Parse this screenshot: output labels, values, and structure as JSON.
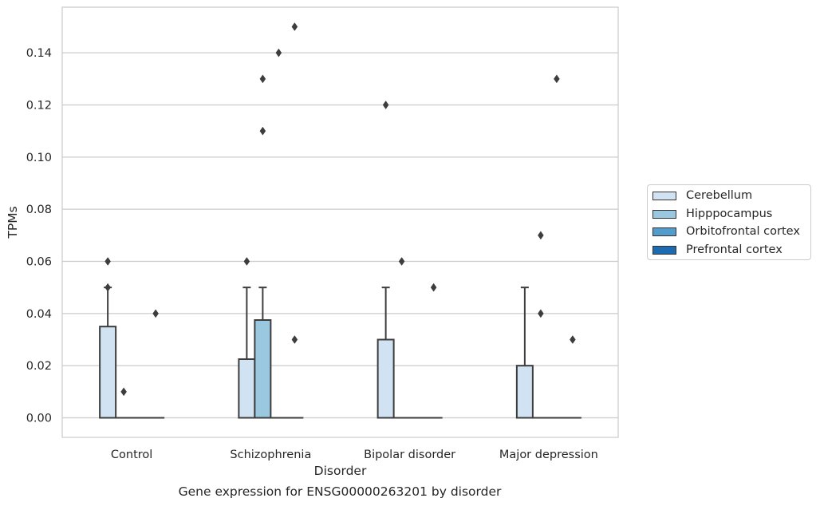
{
  "chart_data": {
    "type": "box",
    "xlabel": "Disorder",
    "ylabel": "TPMs",
    "ylim": [
      -0.0075,
      0.1575
    ],
    "yticks": [
      0.0,
      0.02,
      0.04,
      0.06,
      0.08,
      0.1,
      0.12,
      0.14
    ],
    "ytick_labels": [
      "0.00",
      "0.02",
      "0.04",
      "0.06",
      "0.08",
      "0.10",
      "0.12",
      "0.14"
    ],
    "grid": true,
    "legend_position": "right",
    "categories": [
      "Control",
      "Schizophrenia",
      "Bipolar disorder",
      "Major depression"
    ],
    "series": [
      {
        "name": "Cerebellum",
        "color": "#d1e2f2",
        "boxes": [
          {
            "q1": 0.0,
            "median": 0.0,
            "q3": 0.035,
            "whisker_low": 0.0,
            "whisker_high": 0.05,
            "outliers": [
              0.06,
              0.05
            ]
          },
          {
            "q1": 0.0,
            "median": 0.0,
            "q3": 0.0225,
            "whisker_low": 0.0,
            "whisker_high": 0.05,
            "outliers": [
              0.06
            ]
          },
          {
            "q1": 0.0,
            "median": 0.0,
            "q3": 0.03,
            "whisker_low": 0.0,
            "whisker_high": 0.05,
            "outliers": [
              0.12
            ]
          },
          {
            "q1": 0.0,
            "median": 0.0,
            "q3": 0.02,
            "whisker_low": 0.0,
            "whisker_high": 0.05,
            "outliers": []
          }
        ]
      },
      {
        "name": "Hipppocampus",
        "color": "#9ac8e0",
        "boxes": [
          {
            "q1": 0.0,
            "median": 0.0,
            "q3": 0.0,
            "whisker_low": 0.0,
            "whisker_high": 0.0,
            "outliers": [
              0.01
            ]
          },
          {
            "q1": 0.0,
            "median": 0.0,
            "q3": 0.0375,
            "whisker_low": 0.0,
            "whisker_high": 0.05,
            "outliers": [
              0.11,
              0.13
            ]
          },
          {
            "q1": 0.0,
            "median": 0.0,
            "q3": 0.0,
            "whisker_low": 0.0,
            "whisker_high": 0.0,
            "outliers": [
              0.06
            ]
          },
          {
            "q1": 0.0,
            "median": 0.0,
            "q3": 0.0,
            "whisker_low": 0.0,
            "whisker_high": 0.0,
            "outliers": [
              0.07,
              0.04
            ]
          }
        ]
      },
      {
        "name": "Orbitofrontal cortex",
        "color": "#529dcc",
        "boxes": [
          {
            "q1": 0.0,
            "median": 0.0,
            "q3": 0.0,
            "whisker_low": 0.0,
            "whisker_high": 0.0,
            "outliers": []
          },
          {
            "q1": 0.0,
            "median": 0.0,
            "q3": 0.0,
            "whisker_low": 0.0,
            "whisker_high": 0.0,
            "outliers": [
              0.14
            ]
          },
          {
            "q1": 0.0,
            "median": 0.0,
            "q3": 0.0,
            "whisker_low": 0.0,
            "whisker_high": 0.0,
            "outliers": []
          },
          {
            "q1": 0.0,
            "median": 0.0,
            "q3": 0.0,
            "whisker_low": 0.0,
            "whisker_high": 0.0,
            "outliers": [
              0.13
            ]
          }
        ]
      },
      {
        "name": "Prefrontal cortex",
        "color": "#1c6aaf",
        "boxes": [
          {
            "q1": 0.0,
            "median": 0.0,
            "q3": 0.0,
            "whisker_low": 0.0,
            "whisker_high": 0.0,
            "outliers": [
              0.04
            ]
          },
          {
            "q1": 0.0,
            "median": 0.0,
            "q3": 0.0,
            "whisker_low": 0.0,
            "whisker_high": 0.0,
            "outliers": [
              0.15,
              0.03
            ]
          },
          {
            "q1": 0.0,
            "median": 0.0,
            "q3": 0.0,
            "whisker_low": 0.0,
            "whisker_high": 0.0,
            "outliers": [
              0.05
            ]
          },
          {
            "q1": 0.0,
            "median": 0.0,
            "q3": 0.0,
            "whisker_low": 0.0,
            "whisker_high": 0.0,
            "outliers": [
              0.03
            ]
          }
        ]
      }
    ],
    "caption": "Gene expression for ENSG00000263201 by disorder"
  }
}
